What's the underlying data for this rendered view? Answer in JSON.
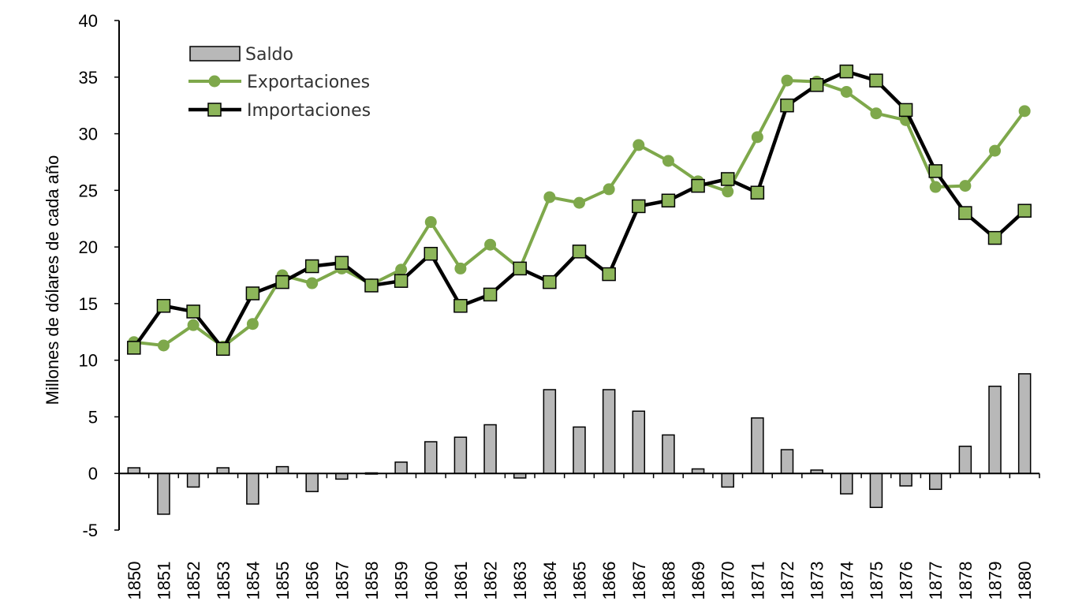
{
  "chart_data": {
    "type": "bar+line",
    "title": "",
    "xlabel": "",
    "ylabel": "Millones de dólares de cada año",
    "ylim": [
      -5,
      40
    ],
    "yticks": [
      -5,
      0,
      5,
      10,
      15,
      20,
      25,
      30,
      35,
      40
    ],
    "grid": false,
    "legend_position": "top-left",
    "categories": [
      "1850",
      "1851",
      "1852",
      "1853",
      "1854",
      "1855",
      "1856",
      "1857",
      "1858",
      "1859",
      "1860",
      "1861",
      "1862",
      "1863",
      "1864",
      "1865",
      "1866",
      "1867",
      "1868",
      "1869",
      "1870",
      "1871",
      "1872",
      "1873",
      "1874",
      "1875",
      "1876",
      "1877",
      "1878",
      "1879",
      "1880"
    ],
    "series": [
      {
        "name": "Saldo",
        "kind": "bar",
        "color": "#b8b8b8",
        "values": [
          0.5,
          -3.6,
          -1.2,
          0.5,
          -2.7,
          0.6,
          -1.6,
          -0.5,
          0.05,
          1.0,
          2.8,
          3.2,
          4.3,
          -0.4,
          7.4,
          4.1,
          7.4,
          5.5,
          3.4,
          0.4,
          -1.2,
          4.9,
          2.1,
          0.3,
          -1.8,
          -3.0,
          -1.1,
          -1.4,
          2.4,
          7.7,
          8.8
        ]
      },
      {
        "name": "Exportaciones",
        "kind": "line",
        "color": "#7ea84b",
        "marker": "circle",
        "values": [
          11.6,
          11.3,
          13.1,
          11.2,
          13.2,
          17.5,
          16.8,
          18.1,
          16.7,
          18.0,
          22.2,
          18.1,
          20.2,
          18.1,
          24.4,
          23.9,
          25.1,
          29.0,
          27.6,
          25.8,
          24.9,
          29.7,
          34.7,
          34.6,
          33.7,
          31.8,
          31.2,
          25.3,
          25.4,
          28.5,
          32.0
        ]
      },
      {
        "name": "Importaciones",
        "kind": "line",
        "color": "#000000",
        "marker_fill": "#8db65a",
        "marker": "square",
        "values": [
          11.1,
          14.8,
          14.3,
          11.0,
          15.9,
          16.9,
          18.3,
          18.6,
          16.6,
          17.0,
          19.4,
          14.8,
          15.8,
          18.1,
          16.9,
          19.6,
          17.6,
          23.6,
          24.1,
          25.4,
          26.0,
          24.8,
          32.5,
          34.3,
          35.5,
          34.7,
          32.1,
          26.7,
          23.0,
          20.8,
          23.2
        ]
      }
    ]
  }
}
